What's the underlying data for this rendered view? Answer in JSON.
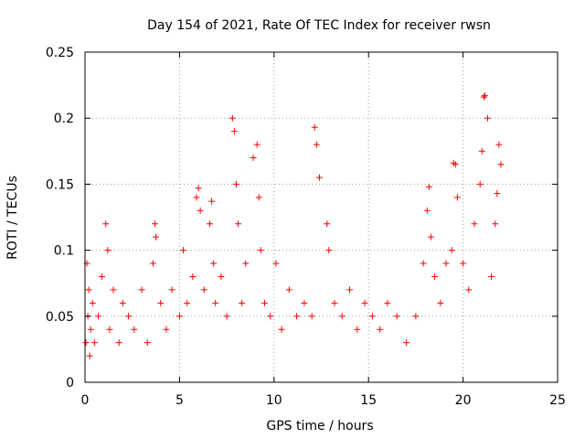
{
  "chart_data": {
    "type": "scatter",
    "title": "Day 154 of 2021, Rate Of TEC Index for receiver rwsn",
    "xlabel": "GPS time / hours",
    "ylabel": "ROTI / TECUs",
    "xlim": [
      0,
      25
    ],
    "ylim": [
      0,
      0.25
    ],
    "x_ticks": [
      "0",
      "5",
      "10",
      "15",
      "20",
      "25"
    ],
    "y_ticks": [
      "0",
      "0.05",
      "0.1",
      "0.15",
      "0.2",
      "0.25"
    ],
    "grid": true,
    "legend": "none",
    "marker": "plus",
    "series": [
      {
        "color": "#ff0000",
        "x": [
          0.05,
          0.1,
          0.15,
          0.2,
          0.25,
          0.3,
          0.4,
          0.5,
          0.7,
          0.9,
          1.1,
          1.2,
          1.3,
          1.5,
          1.8,
          2.0,
          2.3,
          2.6,
          3.0,
          3.3,
          3.6,
          3.7,
          3.75,
          4.0,
          4.3,
          4.6,
          5.0,
          5.2,
          5.4,
          5.7,
          5.9,
          6.0,
          6.1,
          6.3,
          6.6,
          6.7,
          6.8,
          6.9,
          7.2,
          7.5,
          7.8,
          7.9,
          8.0,
          8.1,
          8.3,
          8.5,
          8.9,
          9.1,
          9.2,
          9.3,
          9.5,
          9.8,
          10.1,
          10.4,
          10.8,
          11.2,
          11.6,
          12.0,
          12.15,
          12.25,
          12.4,
          12.8,
          12.9,
          13.2,
          13.6,
          14.0,
          14.4,
          14.8,
          15.2,
          15.6,
          16.0,
          16.5,
          17.0,
          17.5,
          17.9,
          18.1,
          18.2,
          18.3,
          18.5,
          18.8,
          19.1,
          19.4,
          19.5,
          19.6,
          19.7,
          20.0,
          20.3,
          20.6,
          20.9,
          21.0,
          21.1,
          21.15,
          21.3,
          21.5,
          21.7,
          21.8,
          21.9,
          22.0
        ],
        "y": [
          0.03,
          0.09,
          0.05,
          0.07,
          0.02,
          0.04,
          0.06,
          0.03,
          0.05,
          0.08,
          0.12,
          0.1,
          0.04,
          0.07,
          0.03,
          0.06,
          0.05,
          0.04,
          0.07,
          0.03,
          0.09,
          0.12,
          0.11,
          0.06,
          0.04,
          0.07,
          0.05,
          0.1,
          0.06,
          0.08,
          0.14,
          0.147,
          0.13,
          0.07,
          0.12,
          0.137,
          0.09,
          0.06,
          0.08,
          0.05,
          0.2,
          0.19,
          0.15,
          0.12,
          0.06,
          0.09,
          0.17,
          0.18,
          0.14,
          0.1,
          0.06,
          0.05,
          0.09,
          0.04,
          0.07,
          0.05,
          0.06,
          0.05,
          0.193,
          0.18,
          0.155,
          0.12,
          0.1,
          0.06,
          0.05,
          0.07,
          0.04,
          0.06,
          0.05,
          0.04,
          0.06,
          0.05,
          0.03,
          0.05,
          0.09,
          0.13,
          0.148,
          0.11,
          0.08,
          0.06,
          0.09,
          0.1,
          0.166,
          0.165,
          0.14,
          0.09,
          0.07,
          0.12,
          0.15,
          0.175,
          0.216,
          0.217,
          0.2,
          0.08,
          0.12,
          0.143,
          0.18,
          0.165
        ]
      }
    ]
  }
}
